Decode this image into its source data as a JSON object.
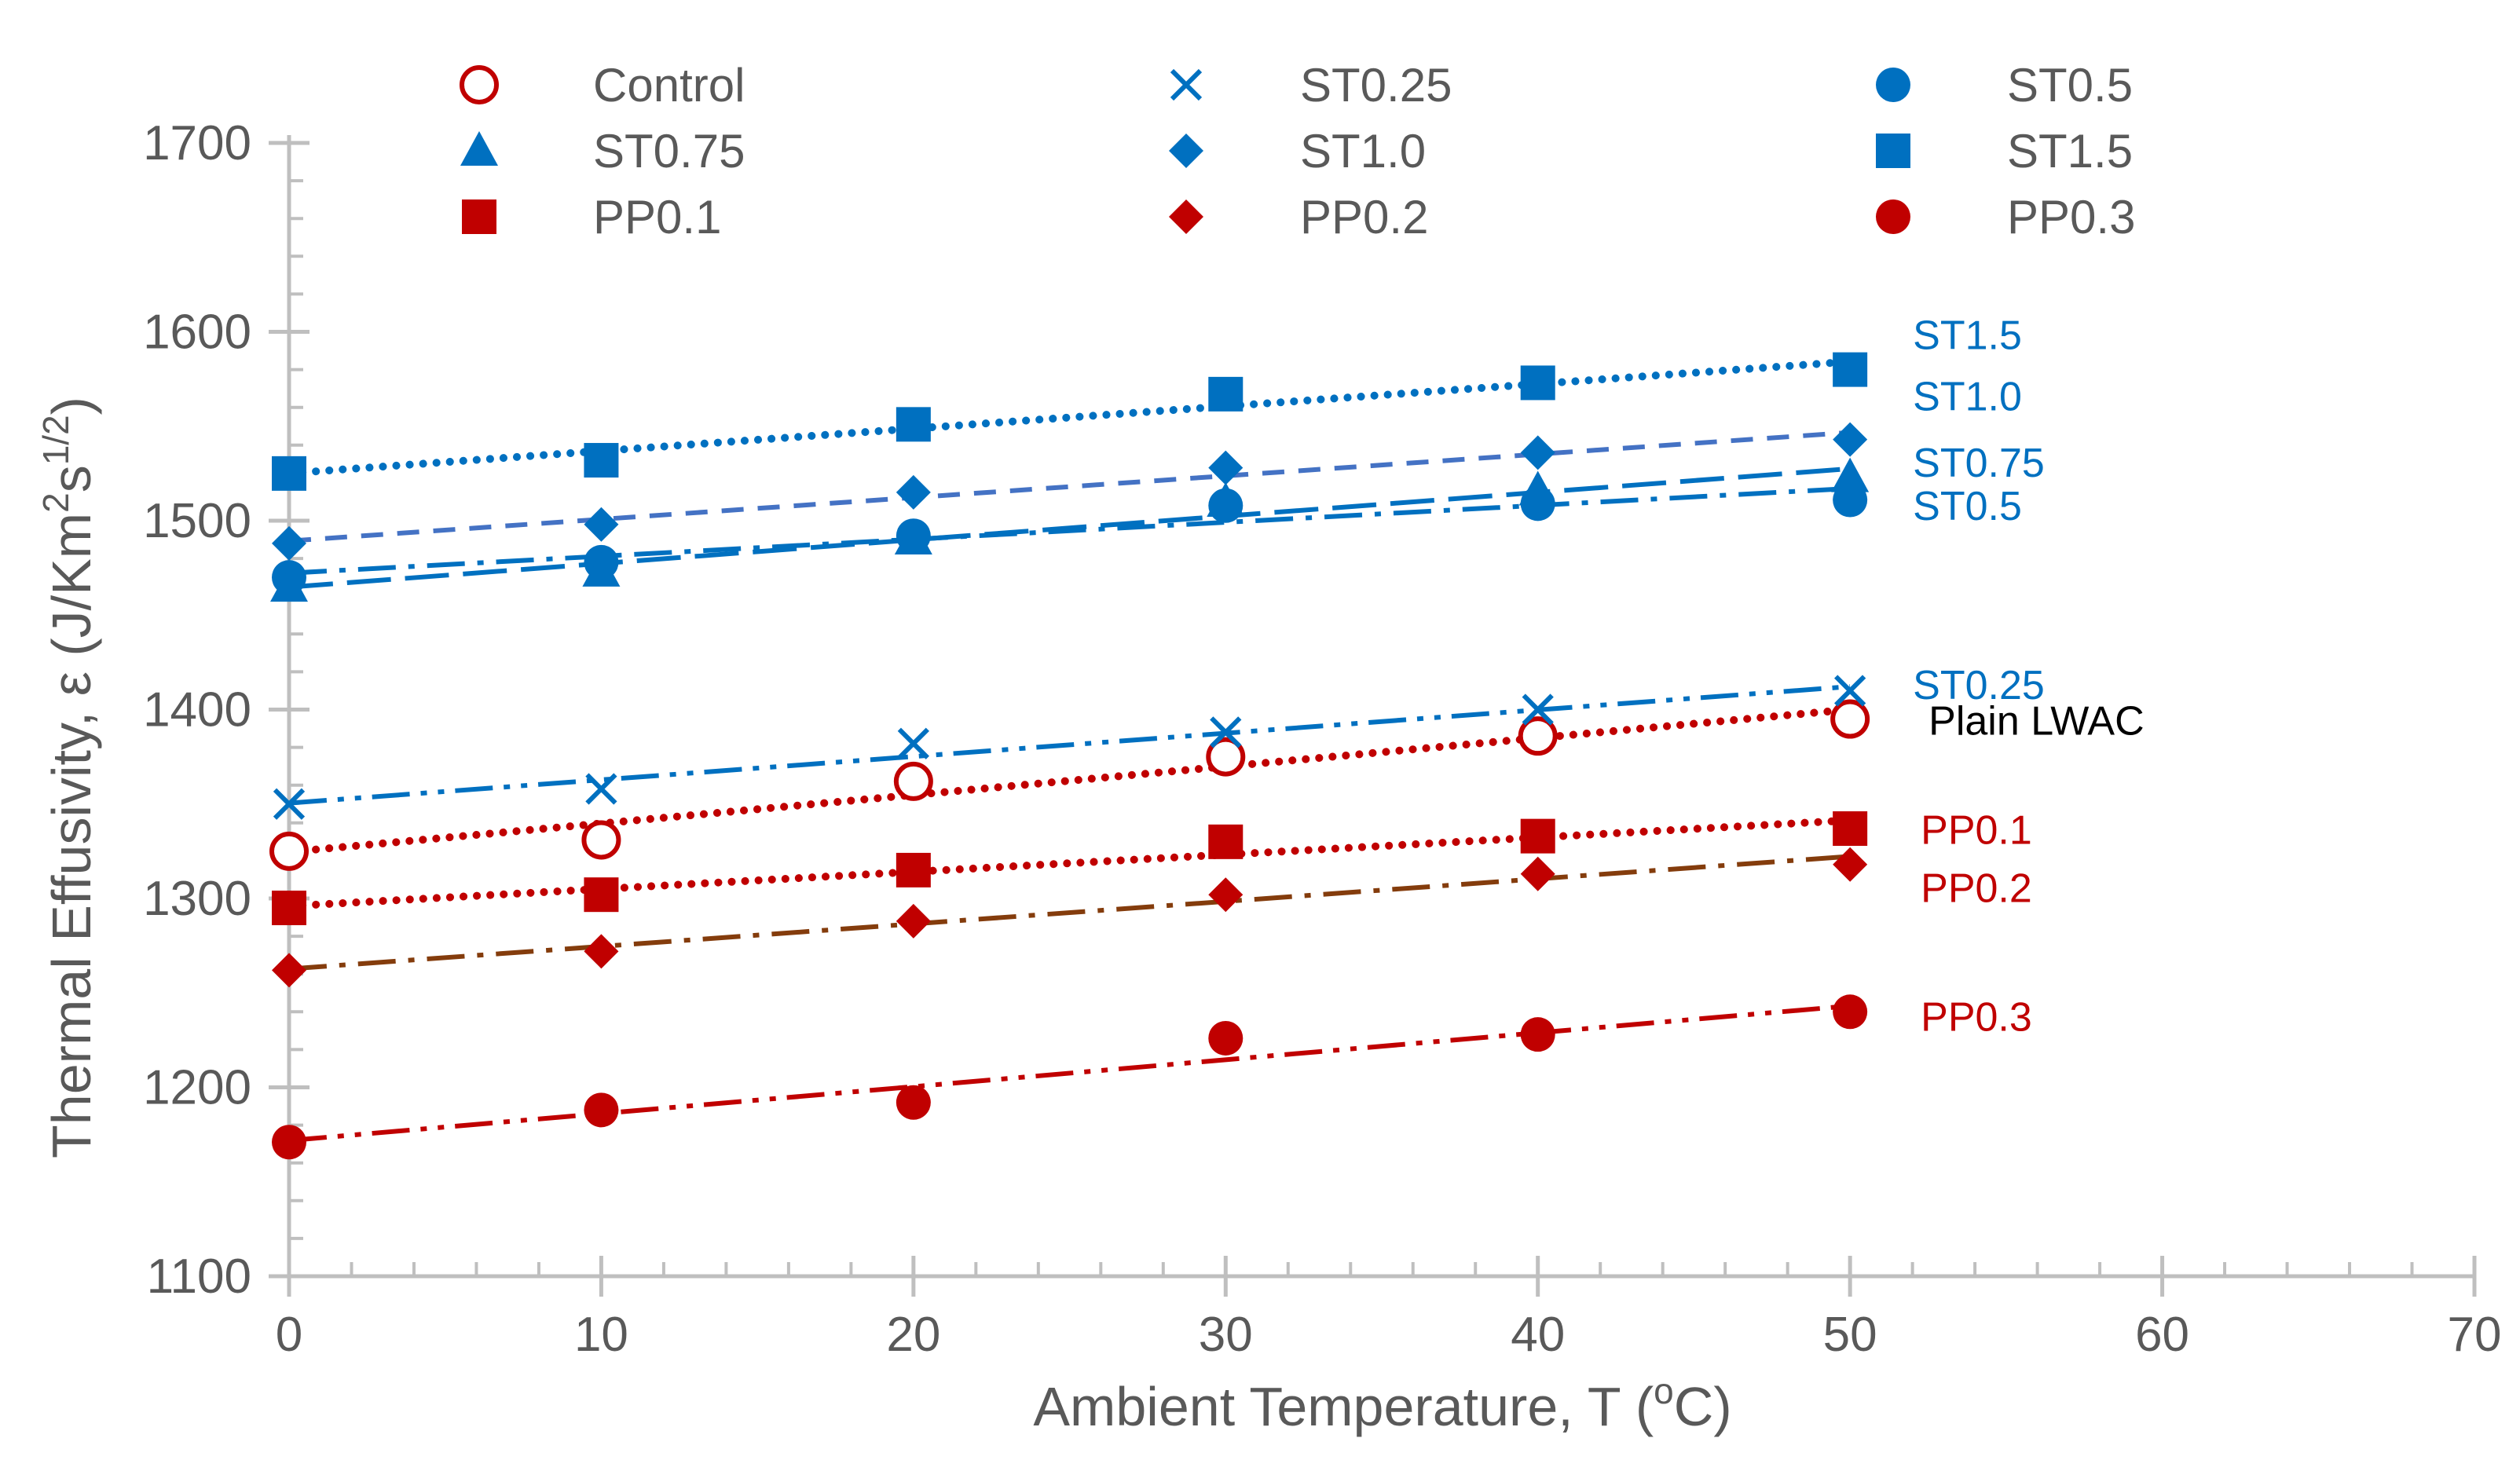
{
  "chart_data": {
    "type": "scatter",
    "title": "",
    "xlabel": "Ambient Temperature, T (",
    "xlabel_sup": "o",
    "xlabel_end": "C)",
    "ylabel": "Thermal Effusivity, ε (J/Km",
    "ylabel_sup1": "2",
    "ylabel_mid": "s",
    "ylabel_sup2": "1/2",
    "ylabel_end": ")",
    "xlim": [
      0,
      70
    ],
    "ylim": [
      1100,
      1700
    ],
    "xticks": [
      0,
      10,
      20,
      30,
      40,
      50,
      60,
      70
    ],
    "yticks": [
      1100,
      1200,
      1300,
      1400,
      1500,
      1600,
      1700
    ],
    "x": [
      0,
      10,
      20,
      30,
      40,
      50
    ],
    "legend_position": "top",
    "series": [
      {
        "name": "Control",
        "label": "Plain LWAC",
        "label_color": "#000000",
        "color": "#C00000",
        "marker": "open-circle",
        "line": "dotted",
        "line_color": "#C00000",
        "values": [
          1325,
          1331,
          1362,
          1375,
          1386,
          1395
        ]
      },
      {
        "name": "ST0.25",
        "label": "ST0.25",
        "label_color": "#0070C0",
        "color": "#0070C0",
        "marker": "x",
        "line": "dashdotdot",
        "line_color": "#0070C0",
        "values": [
          1350,
          1358,
          1382,
          1388,
          1400,
          1410
        ]
      },
      {
        "name": "ST0.5",
        "label": "ST0.5",
        "label_color": "#0070C0",
        "color": "#0070C0",
        "marker": "circle",
        "line": "dashdot",
        "line_color": "#0070C0",
        "values": [
          1470,
          1478,
          1492,
          1508,
          1509,
          1511
        ]
      },
      {
        "name": "ST0.75",
        "label": "ST0.75",
        "label_color": "#0070C0",
        "color": "#0070C0",
        "marker": "triangle",
        "line": "longdash",
        "line_color": "#0070C0",
        "values": [
          1465,
          1473,
          1490,
          1510,
          1516,
          1523
        ]
      },
      {
        "name": "ST1.0",
        "label": "ST1.0",
        "label_color": "#0070C0",
        "color": "#0070C0",
        "marker": "diamond",
        "line": "dashed",
        "line_color": "#4472C4",
        "values": [
          1488,
          1498,
          1515,
          1528,
          1536,
          1543
        ]
      },
      {
        "name": "ST1.5",
        "label": "ST1.5",
        "label_color": "#0070C0",
        "color": "#0070C0",
        "marker": "square",
        "line": "dotted",
        "line_color": "#0070C0",
        "values": [
          1525,
          1532,
          1551,
          1567,
          1573,
          1580
        ]
      },
      {
        "name": "PP0.1",
        "label": "PP0.1",
        "label_color": "#C00000",
        "color": "#C00000",
        "marker": "square",
        "line": "dotted",
        "line_color": "#C00000",
        "values": [
          1295,
          1302,
          1315,
          1330,
          1333,
          1337
        ]
      },
      {
        "name": "PP0.2",
        "label": "PP0.2",
        "label_color": "#C00000",
        "color": "#C00000",
        "marker": "diamond",
        "line": "dashdot",
        "line_color": "#843C0C",
        "values": [
          1262,
          1272,
          1288,
          1302,
          1313,
          1318
        ]
      },
      {
        "name": "PP0.3",
        "label": "PP0.3",
        "label_color": "#C00000",
        "color": "#C00000",
        "marker": "circle",
        "line": "dashdotdot",
        "line_color": "#C00000",
        "values": [
          1171,
          1188,
          1192,
          1226,
          1228,
          1240
        ]
      }
    ]
  }
}
